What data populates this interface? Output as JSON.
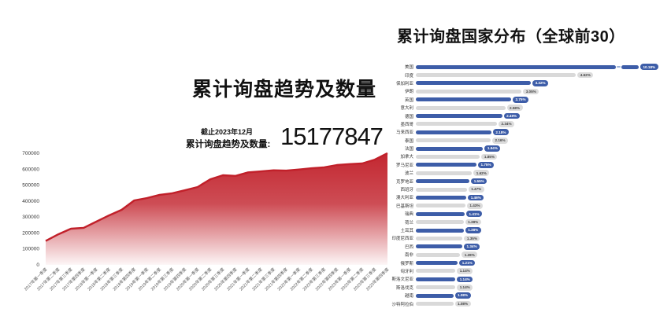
{
  "left_panel": {
    "title": "累计询盘趋势及数量",
    "as_of": "截止2023年12月",
    "total_label": "累计询盘趋势及数量:",
    "total_value": "15177847"
  },
  "right_panel": {
    "title": "累计询盘国家分布（全球前30）"
  },
  "colors": {
    "area_red": "#c1202a",
    "bar_blue": "#3d5da8",
    "bar_gray": "#d9d9d9"
  },
  "chart_data": [
    {
      "type": "area",
      "title": "累计询盘趋势及数量",
      "annotation": {
        "as_of": "截止2023年12月",
        "label": "累计询盘趋势及数量:",
        "value": "15177847"
      },
      "x": [
        "2017年第一季度",
        "2017年第二季度",
        "2017年第三季度",
        "2017年第四季度",
        "2018年第一季度",
        "2018年第二季度",
        "2018年第三季度",
        "2018年第四季度",
        "2019年第一季度",
        "2019年第二季度",
        "2019年第三季度",
        "2019年第四季度",
        "2020年第一季度",
        "2020年第二季度",
        "2020年第三季度",
        "2020年第四季度",
        "2021年第一季度",
        "2021年第二季度",
        "2021年第三季度",
        "2021年第四季度",
        "2022年第一季度",
        "2022年第二季度",
        "2022年第三季度",
        "2022年第四季度",
        "2023年第一季度",
        "2023年第二季度",
        "2023年第三季度",
        "2023年第四季度"
      ],
      "values": [
        150000,
        192000,
        227000,
        232000,
        271000,
        310000,
        345000,
        404000,
        419000,
        439000,
        449000,
        468000,
        488000,
        537000,
        562000,
        558000,
        580000,
        586000,
        593000,
        591000,
        598000,
        606000,
        612000,
        626000,
        632000,
        636000,
        660000,
        700000
      ],
      "ylim": [
        0,
        700000
      ],
      "yticks": [
        0,
        100000,
        200000,
        300000,
        400000,
        500000,
        600000,
        700000
      ],
      "line_color": "#c1202a",
      "grid": false,
      "legend": "none"
    },
    {
      "type": "bar",
      "orientation": "horizontal",
      "title": "累计询盘国家分布（全球前30）",
      "categories": [
        "美国",
        "印度",
        "保加利亚",
        "伊朗",
        "英国",
        "意大利",
        "德国",
        "墨西哥",
        "马来西亚",
        "泰国",
        "法国",
        "加拿大",
        "罗马尼亚",
        "波兰",
        "克罗地亚",
        "西班牙",
        "澳大利亚",
        "巴基斯坦",
        "瑞典",
        "荷兰",
        "土耳其",
        "印度尼西亚",
        "巴西",
        "南非",
        "俄罗斯",
        "匈牙利",
        "斯洛文尼亚",
        "斯洛伐克",
        "越南",
        "沙特阿拉伯"
      ],
      "values": [
        10.18,
        4.62,
        3.32,
        3.05,
        2.75,
        2.58,
        2.49,
        2.34,
        2.18,
        2.16,
        1.94,
        1.85,
        1.75,
        1.62,
        1.55,
        1.47,
        1.46,
        1.43,
        1.41,
        1.38,
        1.38,
        1.35,
        1.34,
        1.28,
        1.21,
        1.14,
        1.14,
        1.14,
        1.08,
        1.08
      ],
      "labels": [
        "10.18%",
        "4.62%",
        "3.32%",
        "3.05%",
        "2.75%",
        "2.58%",
        "2.49%",
        "2.34%",
        "2.18%",
        "2.16%",
        "1.94%",
        "1.85%",
        "1.75%",
        "1.62%",
        "1.55%",
        "1.47%",
        "1.46%",
        "1.43%",
        "1.41%",
        "1.38%",
        "1.38%",
        "1.35%",
        "1.34%",
        "1.28%",
        "1.21%",
        "1.14%",
        "1.14%",
        "1.14%",
        "1.08%",
        "1.08%"
      ],
      "axis_break_on": "美国",
      "bar_color_alternate": [
        "#3d5da8",
        "#d9d9d9"
      ],
      "legend": "none",
      "grid": false
    }
  ]
}
